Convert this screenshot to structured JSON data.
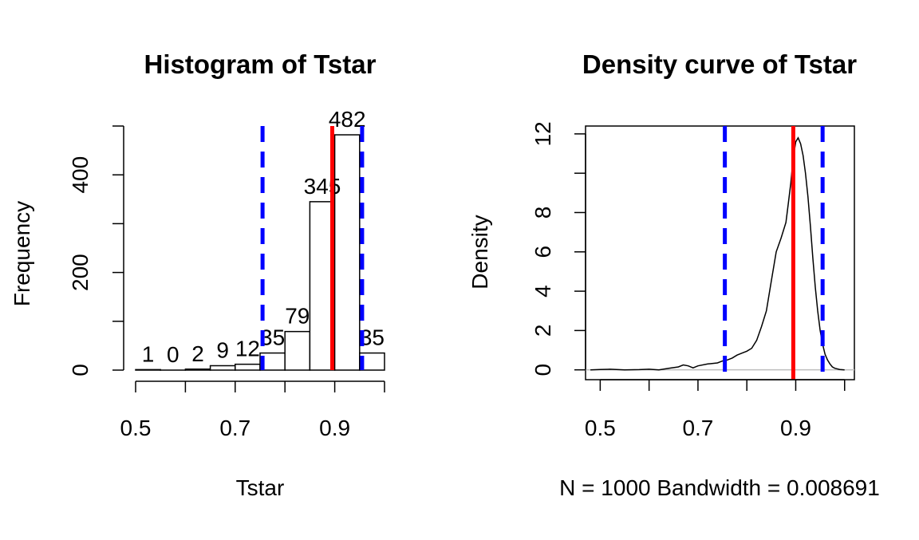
{
  "chart_data": [
    {
      "type": "bar",
      "title": "Histogram of Tstar",
      "xlabel": "Tstar",
      "ylabel": "Frequency",
      "bin_edges": [
        0.5,
        0.55,
        0.6,
        0.65,
        0.7,
        0.75,
        0.8,
        0.85,
        0.9,
        0.95,
        1.0
      ],
      "values": [
        1,
        0,
        2,
        9,
        12,
        35,
        79,
        345,
        482,
        35
      ],
      "bar_labels": [
        "1",
        "0",
        "2",
        "9",
        "12",
        "35",
        "79",
        "345",
        "482",
        "35"
      ],
      "xlim": [
        0.5,
        1.0
      ],
      "ylim": [
        0,
        500
      ],
      "x_ticks": [
        0.5,
        0.6,
        0.7,
        0.8,
        0.9,
        1.0
      ],
      "x_tick_labels": [
        "0.5",
        "",
        "0.7",
        "",
        "0.9",
        ""
      ],
      "y_ticks": [
        0,
        100,
        200,
        300,
        400,
        500
      ],
      "y_tick_labels": [
        "0",
        "",
        "200",
        "",
        "400",
        ""
      ],
      "vlines": [
        {
          "x": 0.755,
          "color": "#0000ff",
          "style": "dashed"
        },
        {
          "x": 0.895,
          "color": "#ff0000",
          "style": "solid"
        },
        {
          "x": 0.955,
          "color": "#0000ff",
          "style": "dashed"
        }
      ]
    },
    {
      "type": "line",
      "title": "Density curve of Tstar",
      "xlabel": "N = 1000   Bandwidth = 0.008691",
      "ylabel": "Density",
      "x": [
        0.48,
        0.5,
        0.52,
        0.55,
        0.58,
        0.6,
        0.62,
        0.64,
        0.66,
        0.67,
        0.68,
        0.69,
        0.7,
        0.72,
        0.74,
        0.75,
        0.76,
        0.77,
        0.78,
        0.79,
        0.8,
        0.81,
        0.82,
        0.83,
        0.84,
        0.85,
        0.86,
        0.87,
        0.88,
        0.885,
        0.89,
        0.895,
        0.9,
        0.905,
        0.91,
        0.915,
        0.92,
        0.925,
        0.93,
        0.935,
        0.94,
        0.945,
        0.95,
        0.955,
        0.96,
        0.965,
        0.97,
        0.975,
        0.98,
        0.99,
        1.0
      ],
      "y": [
        0.0,
        0.02,
        0.03,
        0.0,
        0.01,
        0.03,
        0.0,
        0.08,
        0.15,
        0.25,
        0.2,
        0.1,
        0.2,
        0.3,
        0.35,
        0.45,
        0.5,
        0.6,
        0.75,
        0.85,
        0.95,
        1.1,
        1.5,
        2.2,
        3.0,
        4.5,
        6.0,
        6.7,
        7.5,
        8.5,
        9.5,
        10.8,
        11.6,
        11.8,
        11.5,
        10.9,
        10.0,
        8.8,
        7.3,
        5.7,
        4.2,
        3.0,
        2.0,
        1.3,
        0.8,
        0.5,
        0.3,
        0.15,
        0.08,
        0.02,
        0.0
      ],
      "xlim": [
        0.47,
        1.02
      ],
      "ylim": [
        -0.5,
        12.4
      ],
      "x_ticks": [
        0.5,
        0.6,
        0.7,
        0.8,
        0.9,
        1.0
      ],
      "x_tick_labels": [
        "0.5",
        "",
        "0.7",
        "",
        "0.9",
        ""
      ],
      "y_ticks": [
        0,
        2,
        4,
        6,
        8,
        10,
        12
      ],
      "y_tick_labels": [
        "0",
        "2",
        "4",
        "6",
        "8",
        "",
        "12"
      ],
      "baseline": 0,
      "vlines": [
        {
          "x": 0.755,
          "color": "#0000ff",
          "style": "dashed"
        },
        {
          "x": 0.895,
          "color": "#ff0000",
          "style": "solid"
        },
        {
          "x": 0.955,
          "color": "#0000ff",
          "style": "dashed"
        }
      ]
    }
  ]
}
